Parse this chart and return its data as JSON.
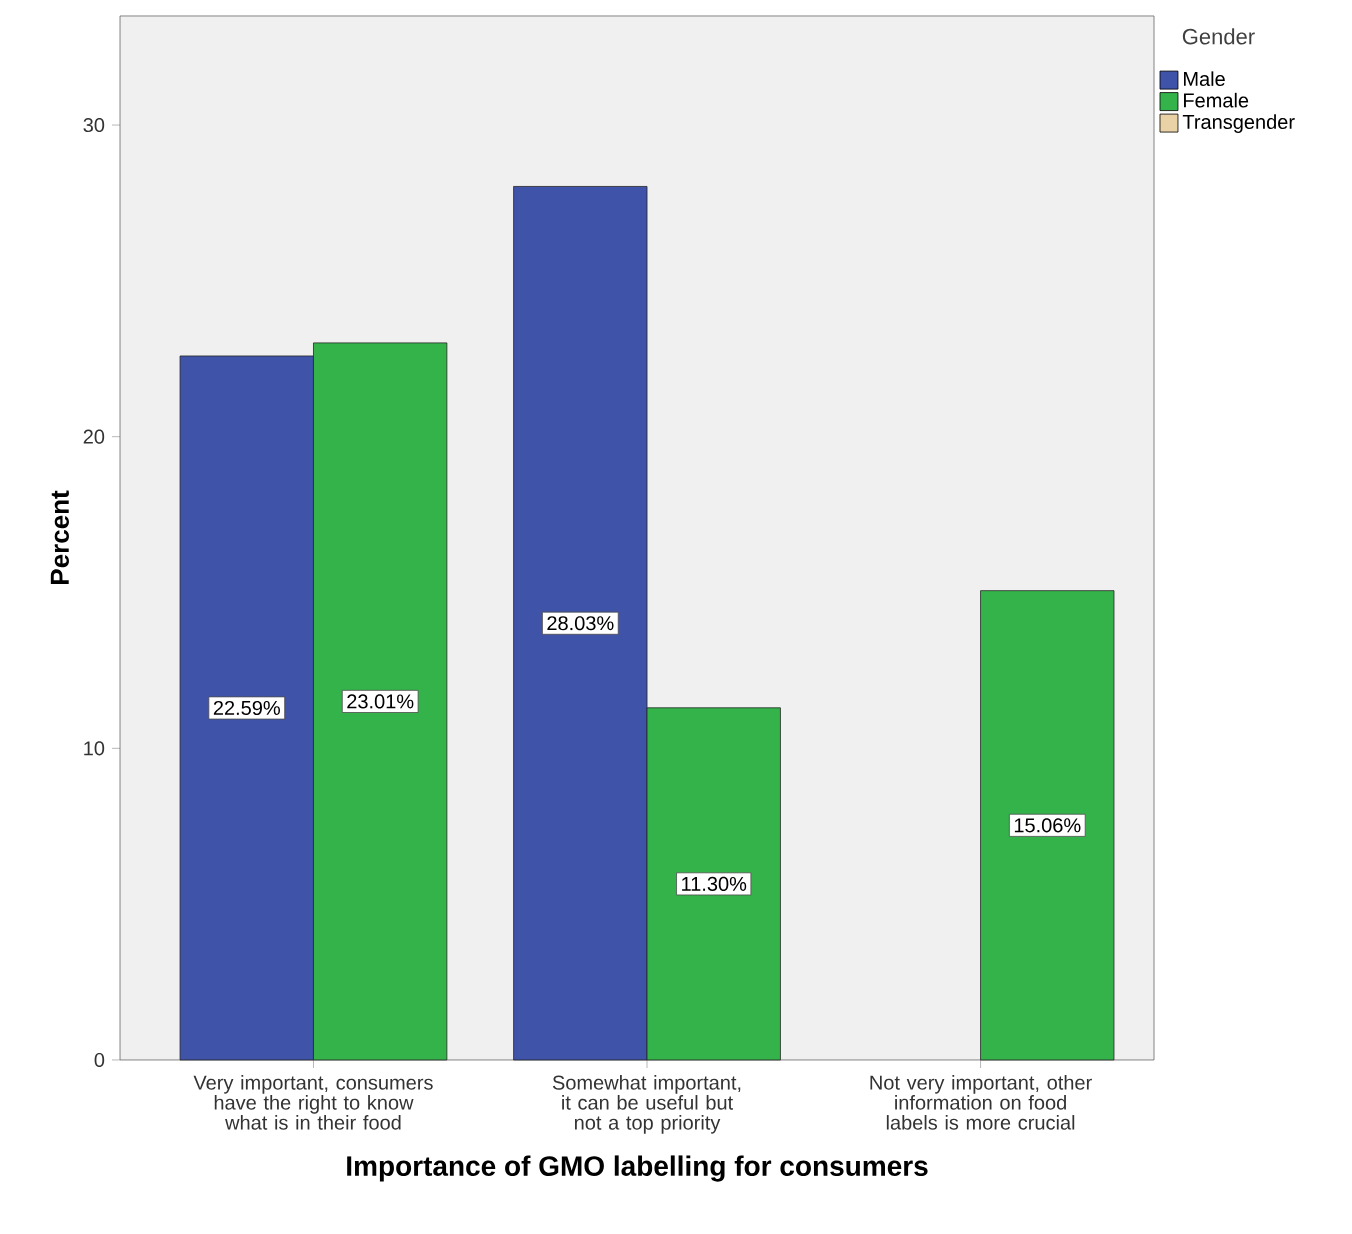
{
  "chart_data": {
    "type": "bar",
    "xlabel": "Importance of GMO labelling for consumers",
    "ylabel": "Percent",
    "legend_title": "Gender",
    "legend": "top right",
    "categories": [
      "Very important, consumers have the right to know what is in their food",
      "Somewhat important, it can be useful but not a top priority",
      "Not very important, other information on food labels is more crucial"
    ],
    "series": [
      {
        "name": "Male",
        "color": "#3f53a8",
        "values": [
          22.59,
          28.03,
          null
        ],
        "value_labels": [
          "22.59%",
          "28.03%",
          null
        ]
      },
      {
        "name": "Female",
        "color": "#34b34a",
        "values": [
          23.01,
          11.3,
          15.06
        ],
        "value_labels": [
          "23.01%",
          "11.30%",
          "15.06%"
        ]
      },
      {
        "name": "Transgender",
        "color": "#e8d2a6",
        "values": [
          null,
          null,
          null
        ]
      }
    ],
    "ylim": [
      0,
      33.5
    ],
    "yticks": [
      0,
      10,
      20,
      30
    ],
    "grid": false
  }
}
